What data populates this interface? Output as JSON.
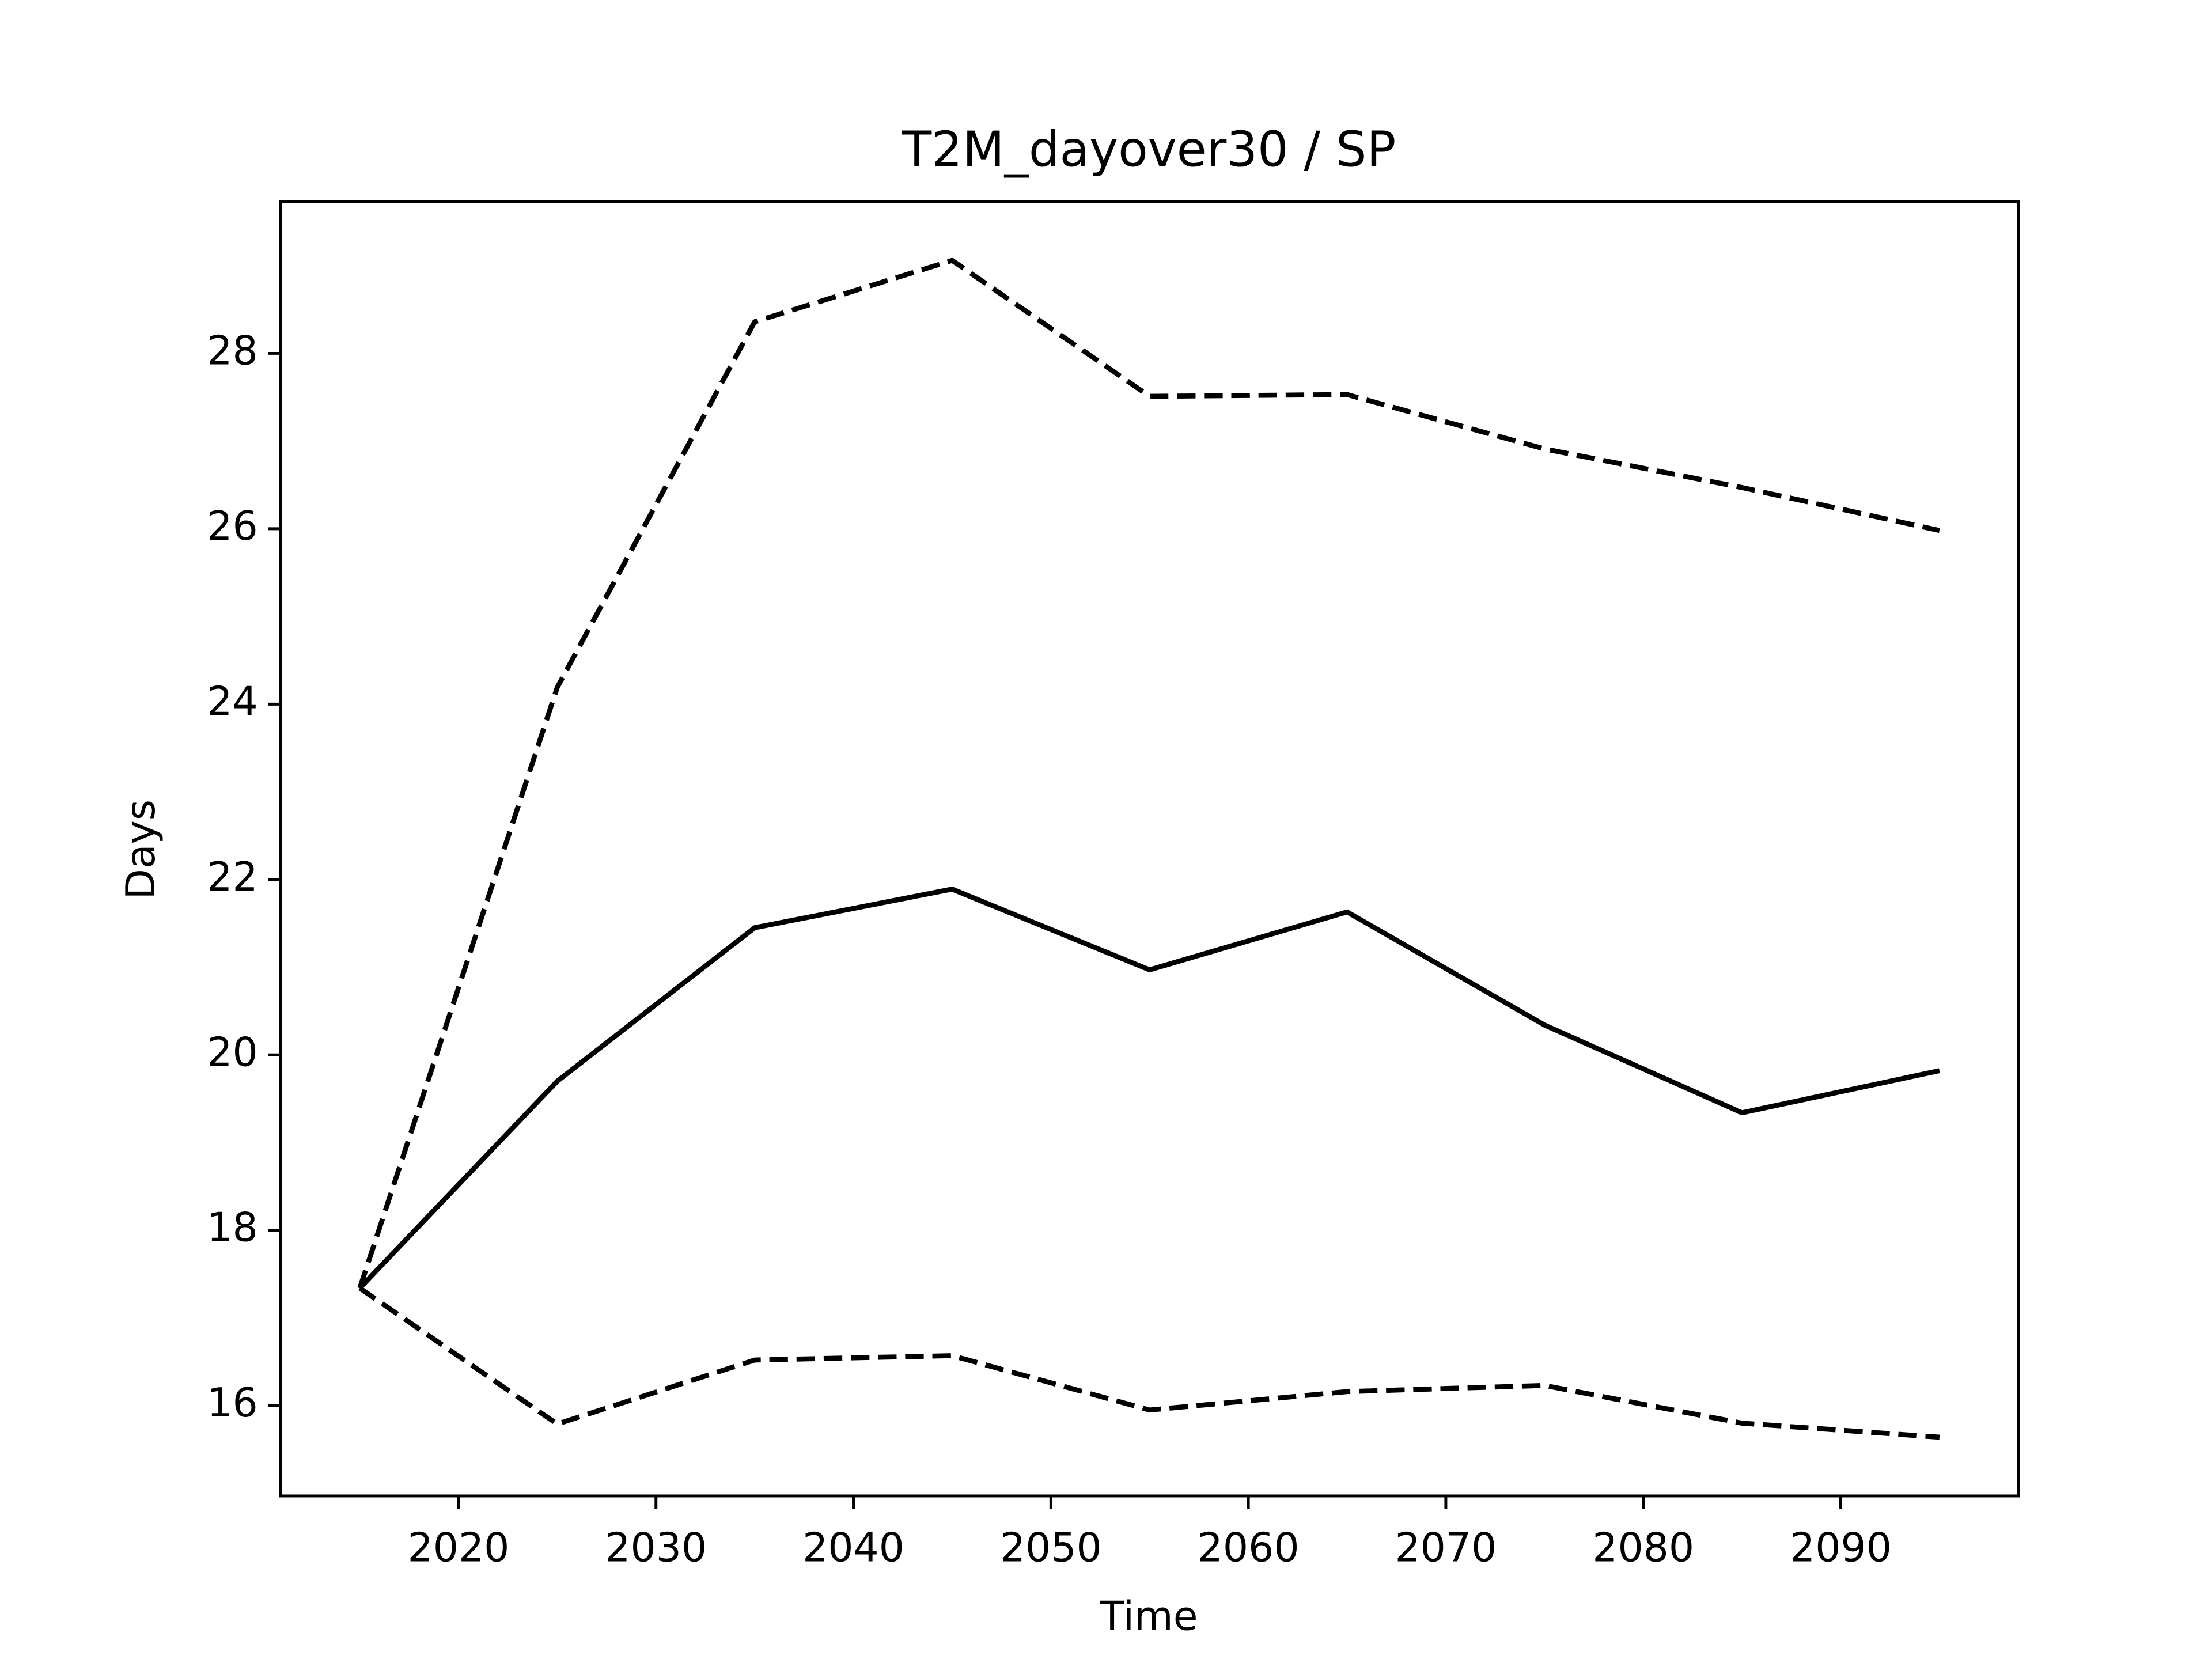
{
  "chart_data": {
    "type": "line",
    "title": "T2M_dayover30 / SP",
    "xlabel": "Time",
    "ylabel": "Days",
    "x": [
      2015,
      2025,
      2035,
      2045,
      2055,
      2065,
      2075,
      2085,
      2095
    ],
    "series": [
      {
        "color": "#000000",
        "dash": false,
        "values": [
          17.34,
          19.7,
          21.45,
          21.89,
          20.97,
          21.63,
          20.34,
          19.34,
          19.82
        ]
      },
      {
        "color": "#000000",
        "dash": true,
        "values": [
          17.34,
          24.19,
          28.36,
          29.06,
          27.51,
          27.53,
          26.91,
          26.47,
          25.98
        ]
      },
      {
        "color": "#000000",
        "dash": true,
        "values": [
          17.34,
          15.79,
          16.52,
          16.57,
          15.95,
          16.16,
          16.23,
          15.8,
          15.64
        ]
      }
    ],
    "xlim": [
      2011,
      2099
    ],
    "xticks": [
      2020,
      2030,
      2040,
      2050,
      2060,
      2070,
      2080,
      2090
    ],
    "ylim": [
      14.97,
      29.73
    ],
    "yticks": [
      16,
      18,
      20,
      22,
      24,
      26,
      28
    ],
    "grid": false
  }
}
